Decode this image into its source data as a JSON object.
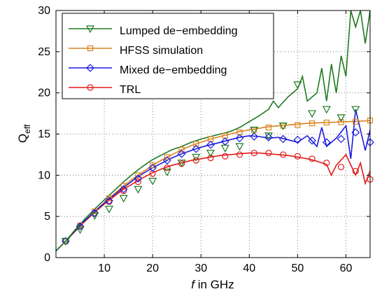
{
  "chart_data": {
    "type": "line",
    "xlabel_var": "f",
    "xlabel_rest": " in GHz",
    "ylabel_main": "Q",
    "ylabel_sub": "eff",
    "xlim": [
      0,
      65
    ],
    "ylim": [
      0,
      30
    ],
    "xticks": [
      10,
      20,
      30,
      40,
      50,
      60
    ],
    "yticks": [
      0,
      5,
      10,
      15,
      20,
      25,
      30
    ],
    "grid": "dotted",
    "legend_position": "top-left",
    "series": [
      {
        "name": "Lumped de−embedding",
        "color": "#1f7a1f",
        "marker": "triangle-down",
        "x": [
          0,
          2,
          4,
          6,
          8,
          10,
          12,
          14,
          16,
          18,
          20,
          22,
          24,
          26,
          28,
          30,
          32,
          34,
          36,
          38,
          40,
          42,
          44,
          45,
          46,
          48,
          50,
          51,
          52,
          54,
          55,
          56,
          57,
          58,
          59,
          60,
          61,
          62,
          63,
          64,
          65
        ],
        "y": [
          0.8,
          2.0,
          3.4,
          4.7,
          5.9,
          7.0,
          8.1,
          9.2,
          10.2,
          11.1,
          11.9,
          12.5,
          13.1,
          13.5,
          14.0,
          14.4,
          14.7,
          15.0,
          15.3,
          15.8,
          16.5,
          17.2,
          18.0,
          19.0,
          18.2,
          19.5,
          20.5,
          22.0,
          19.0,
          20.0,
          23.0,
          19.0,
          23.5,
          20.0,
          24.5,
          22.0,
          30.5,
          28.0,
          33.0,
          26.0,
          31.0
        ],
        "marker_x": [
          2,
          5,
          8,
          11,
          14,
          17,
          20,
          23,
          26,
          29,
          32,
          35,
          38,
          41,
          44,
          47,
          50,
          53,
          56,
          59,
          62
        ],
        "marker_y": [
          2.0,
          3.4,
          5.1,
          5.9,
          7.2,
          8.3,
          9.3,
          10.4,
          11.5,
          12.2,
          12.7,
          13.3,
          13.5,
          15.5,
          14.8,
          16.0,
          21.0,
          17.5,
          18.0,
          17.0,
          18.0
        ]
      },
      {
        "name": "HFSS simulation",
        "color": "#d9821f",
        "marker": "square",
        "x": [
          0,
          2,
          4,
          6,
          8,
          10,
          12,
          14,
          16,
          18,
          20,
          22,
          24,
          26,
          28,
          30,
          32,
          34,
          36,
          38,
          40,
          42,
          44,
          46,
          48,
          50,
          52,
          54,
          56,
          58,
          60,
          62,
          64,
          65
        ],
        "y": [
          0.8,
          2.0,
          3.3,
          4.5,
          5.6,
          6.7,
          7.7,
          8.7,
          9.6,
          10.4,
          11.2,
          11.9,
          12.5,
          13.1,
          13.6,
          14.0,
          14.4,
          14.7,
          15.0,
          15.3,
          15.5,
          15.7,
          15.9,
          16.0,
          16.1,
          16.2,
          16.3,
          16.35,
          16.4,
          16.45,
          16.5,
          16.55,
          16.6,
          16.65
        ],
        "marker_x": [
          2,
          5,
          8,
          11,
          14,
          17,
          20,
          23,
          26,
          29,
          32,
          35,
          38,
          41,
          44,
          47,
          50,
          53,
          56,
          59,
          62,
          65
        ],
        "marker_y": [
          2.0,
          3.9,
          5.6,
          7.2,
          8.7,
          10.0,
          11.2,
          12.2,
          13.1,
          13.8,
          14.4,
          14.8,
          15.2,
          15.5,
          15.8,
          16.0,
          16.1,
          16.3,
          16.4,
          16.45,
          16.5,
          16.65
        ]
      },
      {
        "name": "Mixed de−embedding",
        "color": "#1a1ae0",
        "marker": "diamond",
        "x": [
          0,
          2,
          4,
          6,
          8,
          10,
          12,
          14,
          16,
          18,
          20,
          22,
          24,
          26,
          28,
          30,
          32,
          34,
          36,
          38,
          40,
          42,
          44,
          46,
          48,
          50,
          52,
          54,
          55,
          56,
          58,
          60,
          61,
          62,
          64,
          65
        ],
        "y": [
          0.8,
          2.0,
          3.3,
          4.5,
          5.6,
          6.6,
          7.6,
          8.5,
          9.4,
          10.2,
          10.9,
          11.5,
          12.1,
          12.6,
          13.0,
          13.4,
          13.7,
          14.0,
          14.3,
          14.6,
          14.8,
          14.7,
          14.5,
          14.6,
          14.3,
          14.0,
          14.8,
          13.5,
          15.8,
          13.5,
          14.5,
          16.0,
          12.0,
          18.0,
          13.0,
          15.5
        ],
        "marker_x": [
          2,
          5,
          8,
          11,
          14,
          17,
          20,
          23,
          26,
          29,
          32,
          35,
          38,
          41,
          44,
          47,
          50,
          53,
          56,
          59,
          62,
          65
        ],
        "marker_y": [
          2.0,
          3.8,
          5.4,
          6.9,
          8.3,
          9.6,
          10.9,
          11.8,
          12.6,
          13.2,
          13.7,
          14.1,
          14.5,
          14.7,
          14.6,
          14.4,
          14.3,
          14.2,
          14.0,
          14.4,
          15.2,
          14.0
        ]
      },
      {
        "name": "TRL",
        "color": "#e21a1a",
        "marker": "circle",
        "x": [
          0,
          2,
          4,
          6,
          8,
          10,
          12,
          14,
          16,
          18,
          20,
          22,
          24,
          26,
          28,
          30,
          32,
          34,
          36,
          38,
          40,
          42,
          44,
          46,
          48,
          50,
          52,
          54,
          56,
          57,
          58,
          60,
          62,
          63,
          64,
          65
        ],
        "y": [
          0.8,
          2.0,
          3.2,
          4.4,
          5.5,
          6.5,
          7.4,
          8.3,
          9.0,
          9.7,
          10.3,
          10.8,
          11.2,
          11.5,
          11.8,
          12.0,
          12.2,
          12.4,
          12.5,
          12.6,
          12.7,
          12.7,
          12.6,
          12.5,
          12.4,
          12.2,
          12.0,
          11.7,
          11.3,
          10.0,
          11.2,
          12.5,
          10.0,
          11.5,
          9.0,
          10.5
        ],
        "marker_x": [
          2,
          5,
          8,
          11,
          14,
          17,
          20,
          23,
          26,
          29,
          32,
          35,
          38,
          41,
          44,
          47,
          50,
          53,
          56,
          59,
          62,
          65
        ],
        "marker_y": [
          2.0,
          3.8,
          5.4,
          6.8,
          8.1,
          9.2,
          10.2,
          10.9,
          11.4,
          11.8,
          12.1,
          12.3,
          12.5,
          12.7,
          12.7,
          12.5,
          12.3,
          12.0,
          11.5,
          11.0,
          10.5,
          9.5
        ]
      }
    ]
  }
}
